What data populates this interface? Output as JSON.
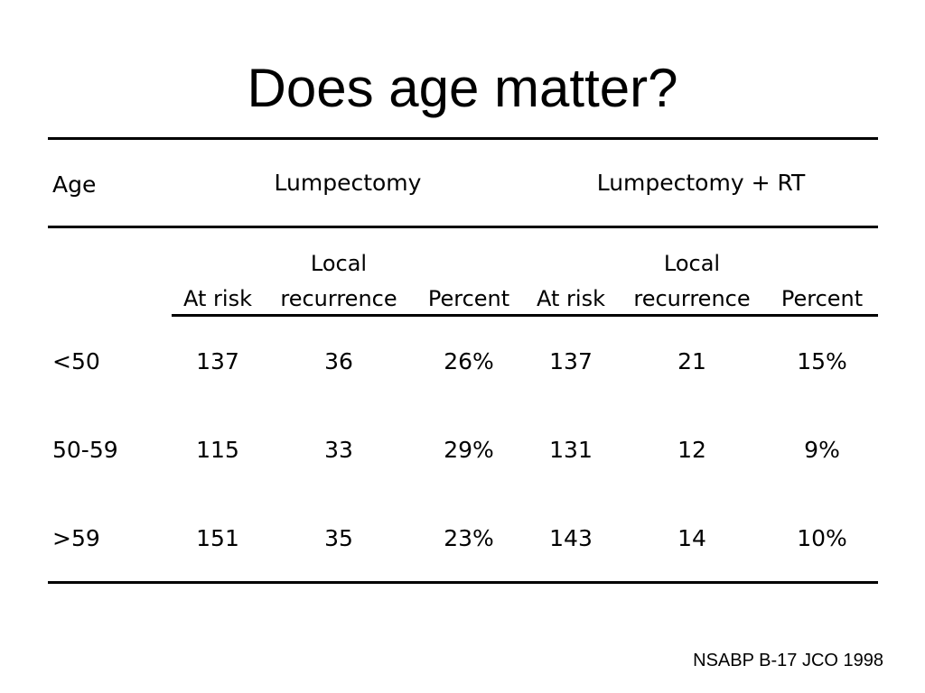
{
  "slide": {
    "title": "Does age matter?"
  },
  "table": {
    "header": {
      "age": "Age",
      "group_a": "Lumpectomy",
      "group_b": "Lumpectomy + RT"
    },
    "subheaders": {
      "at_risk": "At risk",
      "local_line1": "Local",
      "local_line2": "recurrence",
      "percent": "Percent"
    },
    "rows": [
      {
        "age": "<50",
        "a_risk": "137",
        "a_rec": "36",
        "a_pct": "26%",
        "b_risk": "137",
        "b_rec": "21",
        "b_pct": "15%"
      },
      {
        "age": "50-59",
        "a_risk": "115",
        "a_rec": "33",
        "a_pct": "29%",
        "b_risk": "131",
        "b_rec": "12",
        "b_pct": "9%"
      },
      {
        "age": ">59",
        "a_risk": "151",
        "a_rec": "35",
        "a_pct": "23%",
        "b_risk": "143",
        "b_rec": "14",
        "b_pct": "10%"
      }
    ]
  },
  "citation": "NSABP B-17 JCO 1998"
}
